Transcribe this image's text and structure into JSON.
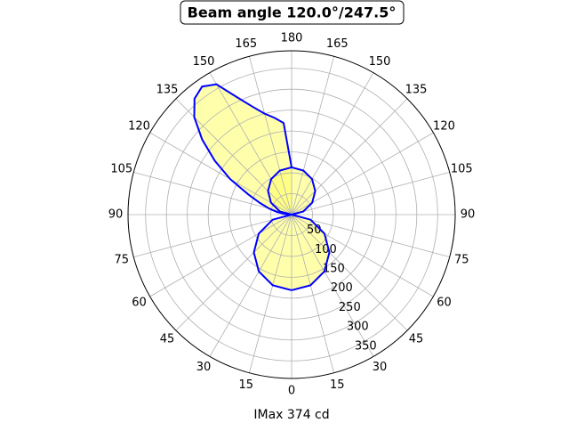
{
  "chart_data": {
    "type": "polar",
    "title": "Beam angle 120.0°/247.5°",
    "xlabel": "IMax 374 cd",
    "rlim": [
      0,
      392
    ],
    "rticks": [
      50,
      100,
      150,
      200,
      250,
      300,
      350
    ],
    "thetaticks": [
      0,
      15,
      30,
      45,
      60,
      75,
      90,
      105,
      120,
      135,
      150,
      165,
      180,
      {
        "value": 195,
        "label": "165"
      },
      {
        "value": 210,
        "label": "150"
      },
      {
        "value": 225,
        "label": "135"
      },
      {
        "value": 240,
        "label": "120"
      },
      {
        "value": 255,
        "label": "105"
      },
      {
        "value": 270,
        "label": "90"
      },
      {
        "value": 285,
        "label": "75"
      },
      {
        "value": 300,
        "label": "60"
      },
      {
        "value": 315,
        "label": "45"
      },
      {
        "value": 330,
        "label": "30"
      },
      {
        "value": 345,
        "label": "15"
      }
    ],
    "grid": true,
    "series": [
      {
        "color": "#0000ff",
        "fill": "#ffff66",
        "theta": [
          0,
          15,
          30,
          45,
          60,
          75,
          90,
          105,
          120,
          135,
          150,
          165,
          180,
          195,
          210,
          225,
          240,
          255,
          270,
          285,
          300,
          315,
          330,
          345,
          360
        ],
        "r": [
          181,
          175,
          157,
          128,
          91,
          47,
          0,
          29,
          57,
          80,
          98,
          109,
          113,
          109,
          98,
          80,
          57,
          29,
          0,
          47,
          91,
          128,
          157,
          175,
          181
        ]
      },
      {
        "color": "#0000ff",
        "fill": "#ffff66",
        "theta": [
          180,
          185,
          190,
          195,
          200,
          205,
          210,
          215,
          220,
          225,
          230,
          235,
          240,
          245,
          250,
          255,
          260,
          265,
          270
        ],
        "r": [
          113,
          220,
          235,
          250,
          275,
          310,
          360,
          374,
          362,
          330,
          280,
          225,
          170,
          115,
          80,
          55,
          35,
          15,
          0
        ]
      }
    ]
  }
}
